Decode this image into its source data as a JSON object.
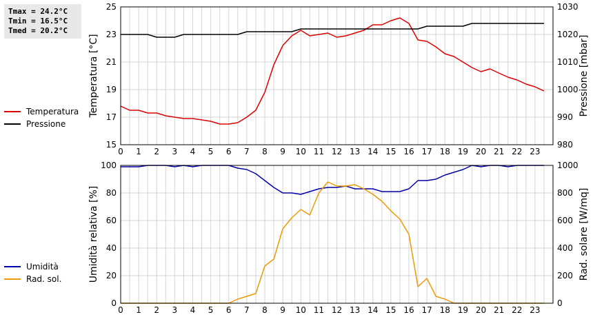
{
  "stats": {
    "tmax": "Tmax = 24.2°C",
    "tmin": "Tmin = 16.5°C",
    "tmed": "Tmed = 20.2°C"
  },
  "chart_data": [
    {
      "type": "line",
      "ylabel": "Temperatura [°C]",
      "y2label": "Pressione [mbar]",
      "xlim": [
        0,
        24
      ],
      "ylim": [
        15,
        25
      ],
      "y2lim": [
        980,
        1030
      ],
      "xticks": [
        "0",
        "1",
        "2",
        "3",
        "4",
        "5",
        "6",
        "7",
        "8",
        "9",
        "10",
        "11",
        "12",
        "13",
        "14",
        "15",
        "16",
        "17",
        "18",
        "19",
        "20",
        "21",
        "22",
        "23"
      ],
      "yticks": [
        "15",
        "17",
        "19",
        "21",
        "23",
        "25"
      ],
      "y2ticks": [
        "980",
        "990",
        "1000",
        "1010",
        "1020",
        "1030"
      ],
      "grid": true,
      "legend": "left",
      "series": [
        {
          "name": "Temperatura",
          "axis": "left",
          "color": "#dd0000",
          "x": [
            0,
            0.5,
            1,
            1.5,
            2,
            2.5,
            3,
            3.5,
            4,
            4.5,
            5,
            5.5,
            6,
            6.5,
            7,
            7.5,
            8,
            8.5,
            9,
            9.5,
            10,
            10.5,
            11,
            11.5,
            12,
            12.5,
            13,
            13.5,
            14,
            14.5,
            15,
            15.5,
            16,
            16.5,
            17,
            17.5,
            18,
            18.5,
            19,
            19.5,
            20,
            20.5,
            21,
            21.5,
            22,
            22.5,
            23,
            23.5
          ],
          "values": [
            17.8,
            17.5,
            17.5,
            17.3,
            17.3,
            17.1,
            17.0,
            16.9,
            16.9,
            16.8,
            16.7,
            16.5,
            16.5,
            16.6,
            17.0,
            17.5,
            18.8,
            20.8,
            22.2,
            22.9,
            23.3,
            22.9,
            23.0,
            23.1,
            22.8,
            22.9,
            23.1,
            23.3,
            23.7,
            23.7,
            24.0,
            24.2,
            23.8,
            22.6,
            22.5,
            22.1,
            21.6,
            21.4,
            21.0,
            20.6,
            20.3,
            20.5,
            20.2,
            19.9,
            19.7,
            19.4,
            19.2,
            18.9
          ]
        },
        {
          "name": "Pressione",
          "axis": "right",
          "color": "#000000",
          "x": [
            0,
            1.5,
            2,
            3,
            3.5,
            6.5,
            7,
            9.5,
            10,
            16.5,
            17,
            19,
            19.5,
            23.5
          ],
          "values": [
            1020,
            1020,
            1019,
            1019,
            1020,
            1020,
            1021,
            1021,
            1022,
            1022,
            1023,
            1023,
            1024,
            1024
          ]
        }
      ]
    },
    {
      "type": "line",
      "ylabel": "Umidità relativa [%]",
      "y2label": "Rad. solare [W/mq]",
      "xlim": [
        0,
        24
      ],
      "ylim": [
        0,
        100
      ],
      "y2lim": [
        0,
        1000
      ],
      "xticks": [
        "0",
        "1",
        "2",
        "3",
        "4",
        "5",
        "6",
        "7",
        "8",
        "9",
        "10",
        "11",
        "12",
        "13",
        "14",
        "15",
        "16",
        "17",
        "18",
        "19",
        "20",
        "21",
        "22",
        "23"
      ],
      "yticks": [
        "0",
        "20",
        "40",
        "60",
        "80",
        "100"
      ],
      "y2ticks": [
        "0",
        "200",
        "400",
        "600",
        "800",
        "1000"
      ],
      "grid": true,
      "legend": "left",
      "series": [
        {
          "name": "Umidità",
          "axis": "left",
          "color": "#0000aa",
          "x": [
            0,
            1,
            1.5,
            2,
            2.5,
            3,
            3.5,
            4,
            4.5,
            5,
            6,
            6.5,
            7,
            7.5,
            8,
            8.5,
            9,
            9.5,
            10,
            10.5,
            11,
            11.5,
            12,
            12.5,
            13,
            13.5,
            14,
            14.5,
            15,
            15.5,
            16,
            16.5,
            17,
            17.5,
            18,
            18.5,
            19,
            19.5,
            20,
            20.5,
            21,
            21.5,
            22,
            22.5,
            23,
            23.5
          ],
          "values": [
            99,
            99,
            100,
            100,
            100,
            99,
            100,
            99,
            100,
            100,
            100,
            98,
            97,
            94,
            89,
            84,
            80,
            80,
            79,
            81,
            83,
            84,
            84,
            85,
            83,
            83,
            83,
            81,
            81,
            81,
            83,
            89,
            89,
            90,
            93,
            95,
            97,
            100,
            99,
            100,
            100,
            99,
            100,
            100,
            100,
            100
          ]
        },
        {
          "name": "Rad. sol.",
          "axis": "right",
          "color": "#ee9900",
          "x": [
            0,
            0.5,
            1,
            1.5,
            2,
            2.5,
            3,
            3.5,
            4,
            4.5,
            5,
            5.5,
            6,
            6.5,
            7,
            7.5,
            8,
            8.5,
            9,
            9.5,
            10,
            10.5,
            11,
            11.5,
            12,
            12.5,
            13,
            13.5,
            14,
            14.5,
            15,
            15.5,
            16,
            16.5,
            17,
            17.5,
            18,
            18.5,
            19,
            19.5,
            20,
            20.5,
            21,
            21.5,
            22,
            22.5,
            23,
            23.5
          ],
          "values": [
            0,
            0,
            0,
            0,
            0,
            0,
            0,
            0,
            0,
            0,
            0,
            0,
            0,
            30,
            50,
            70,
            270,
            320,
            540,
            620,
            680,
            640,
            800,
            880,
            850,
            850,
            860,
            830,
            790,
            740,
            670,
            610,
            500,
            120,
            180,
            50,
            30,
            0,
            0,
            0,
            0,
            0,
            0,
            0,
            0,
            0,
            0,
            0
          ]
        }
      ]
    }
  ]
}
